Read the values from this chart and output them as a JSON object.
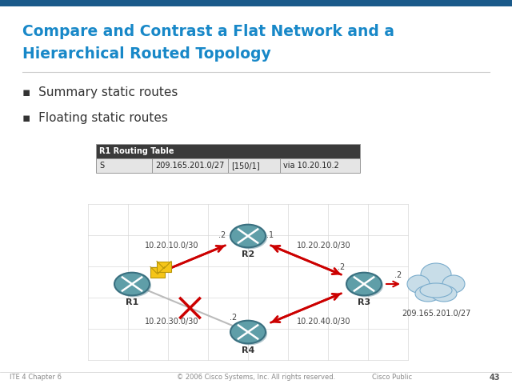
{
  "title_line1": "Compare and Contrast a Flat Network and a",
  "title_line2": "Hierarchical Routed Topology",
  "title_color": "#1888c8",
  "top_bar_color": "#1a5a8a",
  "bullet_color": "#333333",
  "bullet1": "Summary static routes",
  "bullet2": "Floating static routes",
  "bullet_marker": "▪",
  "table_header": "R1 Routing Table",
  "table_row": [
    "S",
    "209.165.201.0/27",
    "[150/1]",
    "via 10.20.10.2"
  ],
  "table_header_bg": "#3a3a3a",
  "table_header_color": "#ffffff",
  "table_row_bg": "#e5e5e5",
  "table_border_color": "#999999",
  "router_color": "#5f9ea8",
  "router_edge_color": "#3a7080",
  "cloud_label": "209.165.201.0/27",
  "cloud_color": "#c8dde8",
  "cloud_edge_color": "#7aaccC",
  "active_arrow_color": "#cc0000",
  "inactive_line_color": "#bbbbbb",
  "inactive_cross_color": "#cc0000",
  "grid_color": "#d8d8d8",
  "label_color": "#444444",
  "footer_left": "ITE 4 Chapter 6",
  "footer_center": "© 2006 Cisco Systems, Inc. All rights reserved.",
  "footer_right": "Cisco Public",
  "footer_page": "43",
  "footer_color": "#888888",
  "envelope_color": "#f5c518",
  "envelope_edge": "#b8960a"
}
